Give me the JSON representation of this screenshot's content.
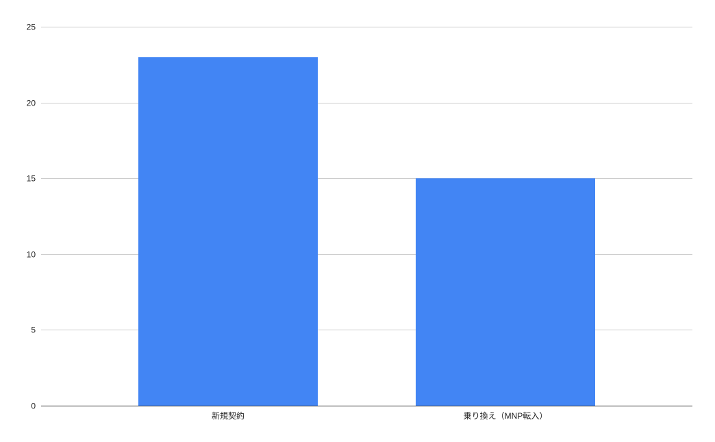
{
  "chart_data": {
    "type": "bar",
    "title": "",
    "xlabel": "",
    "ylabel": "",
    "categories": [
      "新規契約",
      "乗り換え（MNP転入）"
    ],
    "values": [
      23,
      15
    ],
    "ylim": [
      0,
      25
    ],
    "yticks": [
      "0",
      "5",
      "10",
      "15",
      "20",
      "25"
    ],
    "grid": true,
    "legend": "none",
    "bar_color": "#4285f4"
  }
}
